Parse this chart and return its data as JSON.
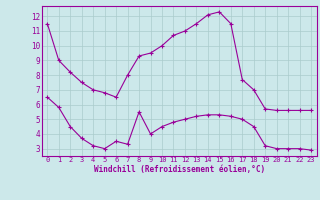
{
  "xlabel": "Windchill (Refroidissement éolien,°C)",
  "background_color": "#cce8ea",
  "line_color": "#990099",
  "xlim": [
    -0.5,
    23.5
  ],
  "ylim": [
    2.5,
    12.7
  ],
  "xticks": [
    0,
    1,
    2,
    3,
    4,
    5,
    6,
    7,
    8,
    9,
    10,
    11,
    12,
    13,
    14,
    15,
    16,
    17,
    18,
    19,
    20,
    21,
    22,
    23
  ],
  "yticks": [
    3,
    4,
    5,
    6,
    7,
    8,
    9,
    10,
    11,
    12
  ],
  "grid_color": "#aacccc",
  "series": [
    {
      "x": [
        0,
        1,
        2,
        3,
        4,
        5,
        6,
        7,
        8,
        9,
        10,
        11,
        12,
        13,
        14,
        15,
        16,
        17,
        18,
        19,
        20,
        21,
        22,
        23
      ],
      "y": [
        11.5,
        9.0,
        8.2,
        7.5,
        7.0,
        6.8,
        6.5,
        8.0,
        9.3,
        9.5,
        10.0,
        10.7,
        11.0,
        11.5,
        12.1,
        12.3,
        11.5,
        7.7,
        7.0,
        5.7,
        5.6,
        5.6,
        5.6,
        5.6
      ]
    },
    {
      "x": [
        0,
        1,
        2,
        3,
        4,
        5,
        6,
        7,
        8,
        9,
        10,
        11,
        12,
        13,
        14,
        15,
        16,
        17,
        18,
        19,
        20,
        21,
        22,
        23
      ],
      "y": [
        6.5,
        5.8,
        4.5,
        3.7,
        3.2,
        3.0,
        3.5,
        3.3,
        5.5,
        4.0,
        4.5,
        4.8,
        5.0,
        5.2,
        5.3,
        5.3,
        5.2,
        5.0,
        4.5,
        3.2,
        3.0,
        3.0,
        3.0,
        2.9
      ]
    }
  ]
}
